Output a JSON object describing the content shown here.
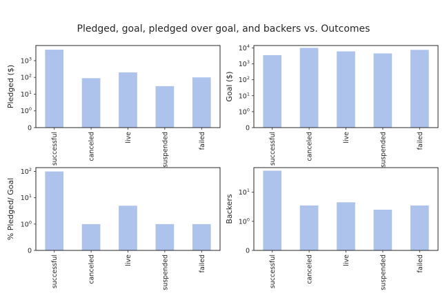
{
  "figure_title": "Pledged, goal, pledged over goal, and backers vs. Outcomes",
  "bar_color": "#aec3ec",
  "chart_data": [
    {
      "type": "bar",
      "id": "pledged",
      "title": "",
      "xlabel": "",
      "ylabel": "Pledged ($)",
      "yscale": "symlog",
      "categories": [
        "successful",
        "canceled",
        "live",
        "suspended",
        "failed"
      ],
      "values": [
        4500,
        90,
        200,
        30,
        100
      ],
      "yticks": [
        {
          "value": 0,
          "base": "0",
          "exp": ""
        },
        {
          "value": 1,
          "base": "10",
          "exp": "0"
        },
        {
          "value": 10,
          "base": "10",
          "exp": "1"
        },
        {
          "value": 100,
          "base": "10",
          "exp": "2"
        },
        {
          "value": 1000,
          "base": "10",
          "exp": "3"
        }
      ],
      "ylim": [
        0,
        8000
      ],
      "grid": false
    },
    {
      "type": "bar",
      "id": "goal",
      "title": "",
      "xlabel": "",
      "ylabel": "Goal ($)",
      "yscale": "symlog",
      "categories": [
        "successful",
        "canceled",
        "live",
        "suspended",
        "failed"
      ],
      "values": [
        3500,
        10000,
        6000,
        4500,
        7500
      ],
      "yticks": [
        {
          "value": 0,
          "base": "0",
          "exp": ""
        },
        {
          "value": 1,
          "base": "10",
          "exp": "0"
        },
        {
          "value": 10,
          "base": "10",
          "exp": "1"
        },
        {
          "value": 100,
          "base": "10",
          "exp": "2"
        },
        {
          "value": 1000,
          "base": "10",
          "exp": "3"
        },
        {
          "value": 10000,
          "base": "10",
          "exp": "4"
        }
      ],
      "ylim": [
        0,
        14000
      ],
      "grid": false
    },
    {
      "type": "bar",
      "id": "pledged-over-goal",
      "title": "",
      "xlabel": "",
      "ylabel": "% Pledged/ Goal",
      "yscale": "symlog",
      "categories": [
        "successful",
        "canceled",
        "live",
        "suspended",
        "failed"
      ],
      "values": [
        100,
        1,
        5,
        1,
        1
      ],
      "yticks": [
        {
          "value": 0,
          "base": "0",
          "exp": ""
        },
        {
          "value": 1,
          "base": "10",
          "exp": "0"
        },
        {
          "value": 10,
          "base": "10",
          "exp": "1"
        },
        {
          "value": 100,
          "base": "10",
          "exp": "2"
        }
      ],
      "ylim": [
        0,
        140
      ],
      "grid": false
    },
    {
      "type": "bar",
      "id": "backers",
      "title": "",
      "xlabel": "",
      "ylabel": "Backers",
      "yscale": "symlog",
      "categories": [
        "successful",
        "canceled",
        "live",
        "suspended",
        "failed"
      ],
      "values": [
        55,
        3.5,
        4.5,
        2.5,
        3.5
      ],
      "yticks": [
        {
          "value": 0,
          "base": "0",
          "exp": ""
        },
        {
          "value": 1,
          "base": "10",
          "exp": "0"
        },
        {
          "value": 10,
          "base": "10",
          "exp": "1"
        }
      ],
      "ylim": [
        0,
        70
      ],
      "grid": false
    }
  ]
}
